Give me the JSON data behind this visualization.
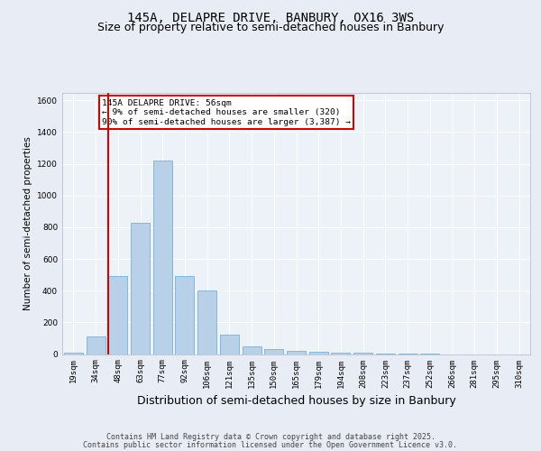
{
  "title_line1": "145A, DELAPRE DRIVE, BANBURY, OX16 3WS",
  "title_line2": "Size of property relative to semi-detached houses in Banbury",
  "xlabel": "Distribution of semi-detached houses by size in Banbury",
  "ylabel": "Number of semi-detached properties",
  "categories": [
    "19sqm",
    "34sqm",
    "48sqm",
    "63sqm",
    "77sqm",
    "92sqm",
    "106sqm",
    "121sqm",
    "135sqm",
    "150sqm",
    "165sqm",
    "179sqm",
    "194sqm",
    "208sqm",
    "223sqm",
    "237sqm",
    "252sqm",
    "266sqm",
    "281sqm",
    "295sqm",
    "310sqm"
  ],
  "values": [
    10,
    110,
    490,
    830,
    1220,
    490,
    400,
    120,
    50,
    30,
    20,
    15,
    10,
    10,
    5,
    5,
    5,
    0,
    0,
    0,
    0
  ],
  "bar_color": "#b8d0e8",
  "bar_edge_color": "#7aafd4",
  "vline_color": "#cc0000",
  "vline_bar_index": 2,
  "annotation_text": "145A DELAPRE DRIVE: 56sqm\n← 9% of semi-detached houses are smaller (320)\n90% of semi-detached houses are larger (3,387) →",
  "annotation_box_color": "#cc0000",
  "ylim": [
    0,
    1650
  ],
  "yticks": [
    0,
    200,
    400,
    600,
    800,
    1000,
    1200,
    1400,
    1600
  ],
  "footer_line1": "Contains HM Land Registry data © Crown copyright and database right 2025.",
  "footer_line2": "Contains public sector information licensed under the Open Government Licence v3.0.",
  "bg_color": "#e8edf5",
  "plot_bg_color": "#edf1f8",
  "title_fontsize": 10,
  "subtitle_fontsize": 9,
  "ylabel_fontsize": 7.5,
  "xlabel_fontsize": 9,
  "tick_fontsize": 6.5,
  "annotation_fontsize": 6.8,
  "footer_fontsize": 6.0
}
